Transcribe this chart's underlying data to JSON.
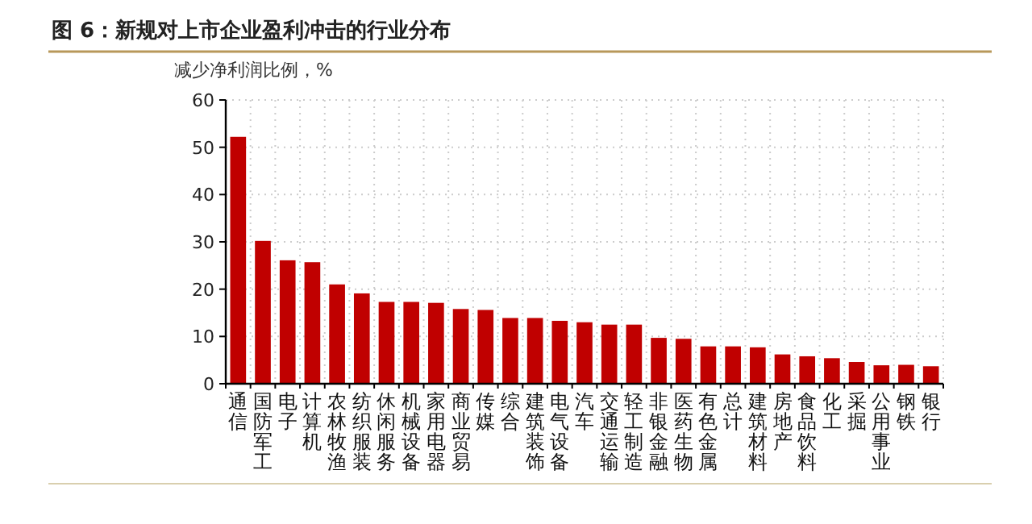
{
  "chart_data": {
    "type": "bar",
    "title": "图 6：新规对上市企业盈利冲击的行业分布",
    "ylabel": "减少净利润比例，%",
    "categories": [
      "通信",
      "国防军工",
      "电子",
      "计算机",
      "农林牧渔",
      "纺织服装",
      "休闲服务",
      "机械设备",
      "家用电器",
      "商业贸易",
      "传媒",
      "综合",
      "建筑装饰",
      "电气设备",
      "汽车",
      "交通运输",
      "轻工制造",
      "非银金融",
      "医药生物",
      "有色金属",
      "总计",
      "建筑材料",
      "房地产",
      "食品饮料",
      "化工",
      "采掘",
      "公用事业",
      "钢铁",
      "银行"
    ],
    "values": [
      52.2,
      30.2,
      26.1,
      25.7,
      21,
      19.1,
      17.3,
      17.3,
      17.1,
      15.8,
      15.6,
      13.9,
      13.9,
      13.3,
      13.0,
      12.5,
      12.5,
      9.7,
      9.5,
      7.9,
      7.9,
      7.7,
      6.2,
      5.8,
      5.4,
      4.6,
      3.9,
      4.0,
      3.7
    ],
    "color": "#c00000",
    "ylim": [
      0,
      60
    ],
    "yticks": [
      0,
      10,
      20,
      30,
      40,
      50,
      60
    ],
    "grid": true
  }
}
